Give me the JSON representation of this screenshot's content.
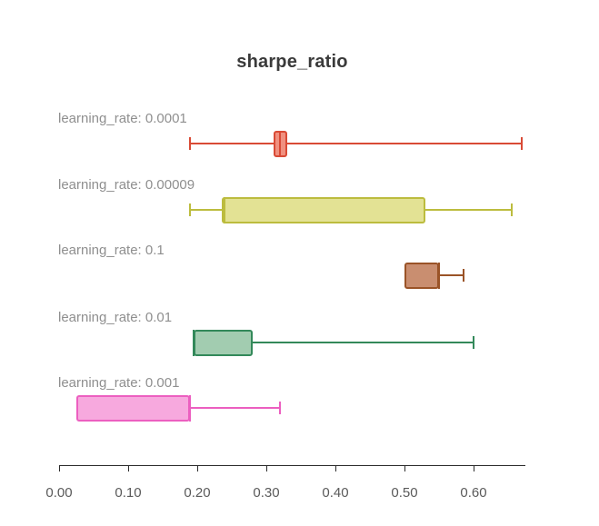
{
  "chart_data": {
    "type": "boxplot",
    "orientation": "horizontal",
    "title": "sharpe_ratio",
    "xlabel": "",
    "ylabel": "",
    "xlim": [
      0.0,
      0.675
    ],
    "grid": false,
    "legend": "none",
    "x_tick_values": [
      0.0,
      0.1,
      0.2,
      0.3,
      0.4,
      0.5,
      0.6
    ],
    "x_tick_labels": [
      "0.00",
      "0.10",
      "0.20",
      "0.30",
      "0.40",
      "0.50",
      "0.60"
    ],
    "series": [
      {
        "label": "learning_rate: 0.0001",
        "min": 0.19,
        "q1": 0.31,
        "median": 0.32,
        "q3": 0.33,
        "max": 0.67,
        "stroke_color": "#d94a35",
        "fill_color": "#f0907f"
      },
      {
        "label": "learning_rate: 0.00009",
        "min": 0.19,
        "q1": 0.235,
        "median": 0.24,
        "q3": 0.53,
        "max": 0.655,
        "stroke_color": "#bcbc3e",
        "fill_color": "#e3e294"
      },
      {
        "label": "learning_rate: 0.1",
        "min": 0.5,
        "q1": 0.5,
        "median": 0.55,
        "q3": 0.55,
        "max": 0.585,
        "stroke_color": "#9a5327",
        "fill_color": "#c98e70"
      },
      {
        "label": "learning_rate: 0.01",
        "min": 0.195,
        "q1": 0.195,
        "median": 0.195,
        "q3": 0.28,
        "max": 0.6,
        "stroke_color": "#33895a",
        "fill_color": "#a2ccb0"
      },
      {
        "label": "learning_rate: 0.001",
        "min": 0.025,
        "q1": 0.025,
        "median": 0.19,
        "q3": 0.19,
        "max": 0.32,
        "stroke_color": "#ec5fc0",
        "fill_color": "#f7a9de"
      }
    ]
  }
}
